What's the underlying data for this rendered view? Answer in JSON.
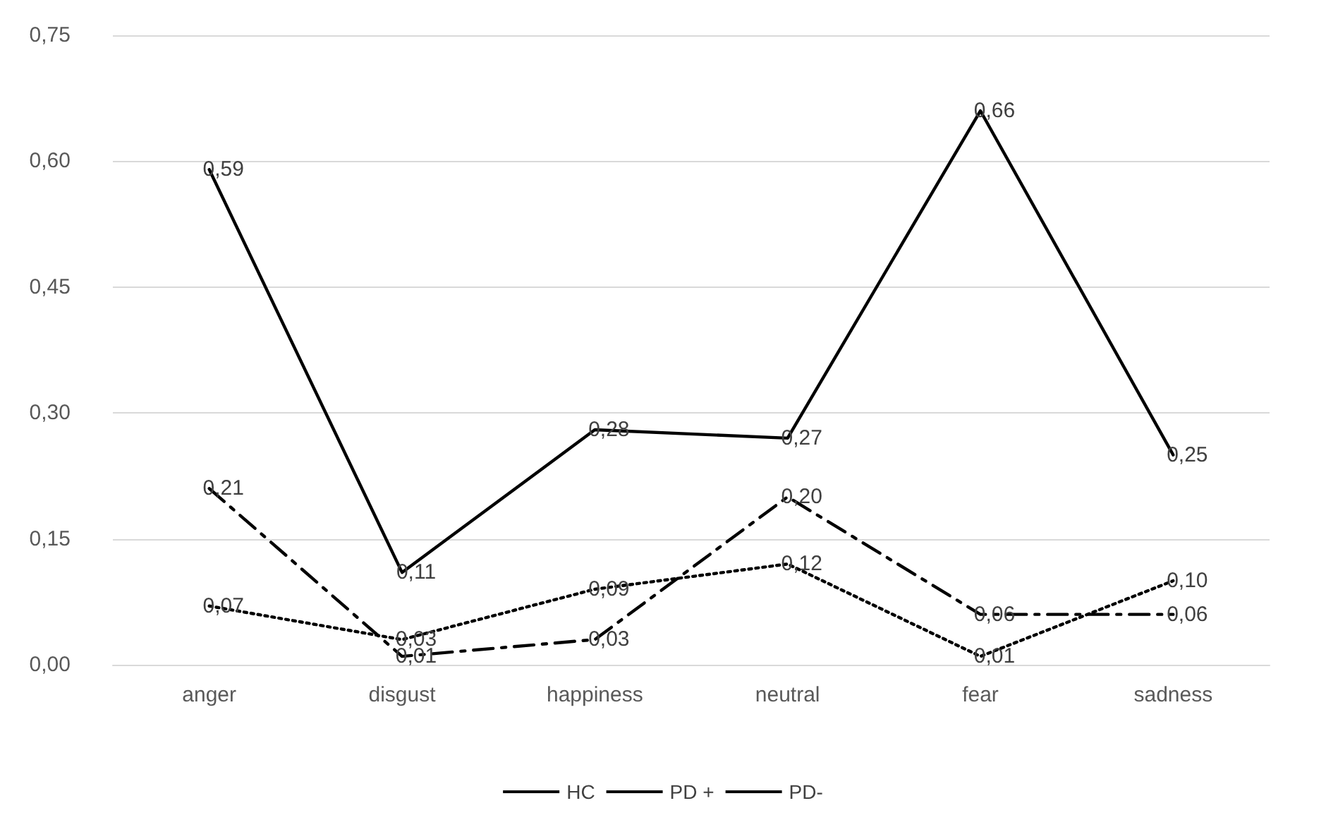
{
  "chart_data": {
    "type": "line",
    "categories": [
      "anger",
      "disgust",
      "happiness",
      "neutral",
      "fear",
      "sadness"
    ],
    "series": [
      {
        "name": "HC",
        "color": "#000000",
        "line_style": "solid",
        "values": [
          0.59,
          0.11,
          0.28,
          0.27,
          0.66,
          0.25
        ],
        "value_labels": [
          "0,59",
          "0,11",
          "0,28",
          "0,27",
          "0,66",
          "0,25"
        ]
      },
      {
        "name": "PD +",
        "color": "#000000",
        "line_style": "dashed",
        "values": [
          0.21,
          0.01,
          0.03,
          0.2,
          0.06,
          0.06
        ],
        "value_labels": [
          "0,21",
          "0,01",
          "0,03",
          "0,20",
          "0,06",
          "0,06"
        ]
      },
      {
        "name": "PD-",
        "color": "#000000",
        "line_style": "dotted",
        "values": [
          0.07,
          0.03,
          0.09,
          0.12,
          0.01,
          0.1
        ],
        "value_labels": [
          "0,07",
          "0,03",
          "0,09",
          "0,12",
          "0,01",
          "0,10"
        ]
      }
    ],
    "ylim": [
      0,
      0.75
    ],
    "yticks": [
      {
        "value": 0,
        "label": "0,00"
      },
      {
        "value": 0.15,
        "label": "0,15"
      },
      {
        "value": 0.3,
        "label": "0,30"
      },
      {
        "value": 0.45,
        "label": "0,45"
      },
      {
        "value": 0.6,
        "label": "0,60"
      },
      {
        "value": 0.75,
        "label": "0,75"
      }
    ],
    "grid": "y",
    "legend": "bottom",
    "marker": "none"
  }
}
